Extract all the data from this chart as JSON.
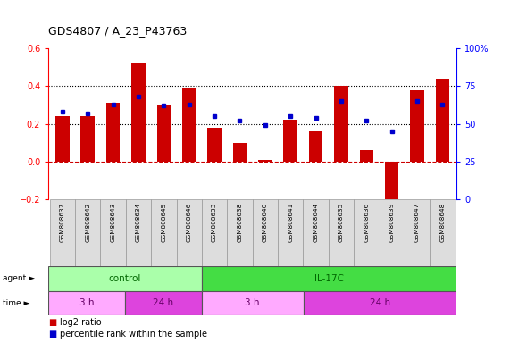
{
  "title": "GDS4807 / A_23_P43763",
  "samples": [
    "GSM808637",
    "GSM808642",
    "GSM808643",
    "GSM808634",
    "GSM808645",
    "GSM808646",
    "GSM808633",
    "GSM808638",
    "GSM808640",
    "GSM808641",
    "GSM808644",
    "GSM808635",
    "GSM808636",
    "GSM808639",
    "GSM808647",
    "GSM808648"
  ],
  "log2_ratio": [
    0.24,
    0.24,
    0.31,
    0.52,
    0.3,
    0.39,
    0.18,
    0.1,
    0.01,
    0.22,
    0.16,
    0.4,
    0.06,
    -0.27,
    0.38,
    0.44
  ],
  "percentile": [
    58,
    57,
    63,
    68,
    62,
    63,
    55,
    52,
    49,
    55,
    54,
    65,
    52,
    45,
    65,
    63
  ],
  "bar_color": "#cc0000",
  "dot_color": "#0000cc",
  "ylim_left": [
    -0.2,
    0.6
  ],
  "ylim_right": [
    0,
    100
  ],
  "yticks_left": [
    -0.2,
    0.0,
    0.2,
    0.4,
    0.6
  ],
  "yticks_right": [
    0,
    25,
    50,
    75,
    100
  ],
  "hlines": [
    0.2,
    0.4
  ],
  "hline_zero_color": "#cc0000",
  "hline_dotted_color": "#000000",
  "agent_groups": [
    {
      "label": "control",
      "start": 0,
      "end": 6,
      "color": "#aaffaa"
    },
    {
      "label": "IL-17C",
      "start": 6,
      "end": 16,
      "color": "#44dd44"
    }
  ],
  "time_groups": [
    {
      "label": "3 h",
      "start": 0,
      "end": 3,
      "color": "#ffaaff"
    },
    {
      "label": "24 h",
      "start": 3,
      "end": 6,
      "color": "#dd44dd"
    },
    {
      "label": "3 h",
      "start": 6,
      "end": 10,
      "color": "#ffaaff"
    },
    {
      "label": "24 h",
      "start": 10,
      "end": 16,
      "color": "#dd44dd"
    }
  ],
  "agent_label_color": "#006600",
  "time_label_color": "#660066",
  "legend_bar_color": "#cc0000",
  "legend_dot_color": "#0000cc",
  "legend_bar_label": "log2 ratio",
  "legend_dot_label": "percentile rank within the sample",
  "background_color": "#ffffff",
  "plot_bg_color": "#ffffff",
  "sample_cell_color": "#dddddd",
  "sample_cell_border": "#999999"
}
